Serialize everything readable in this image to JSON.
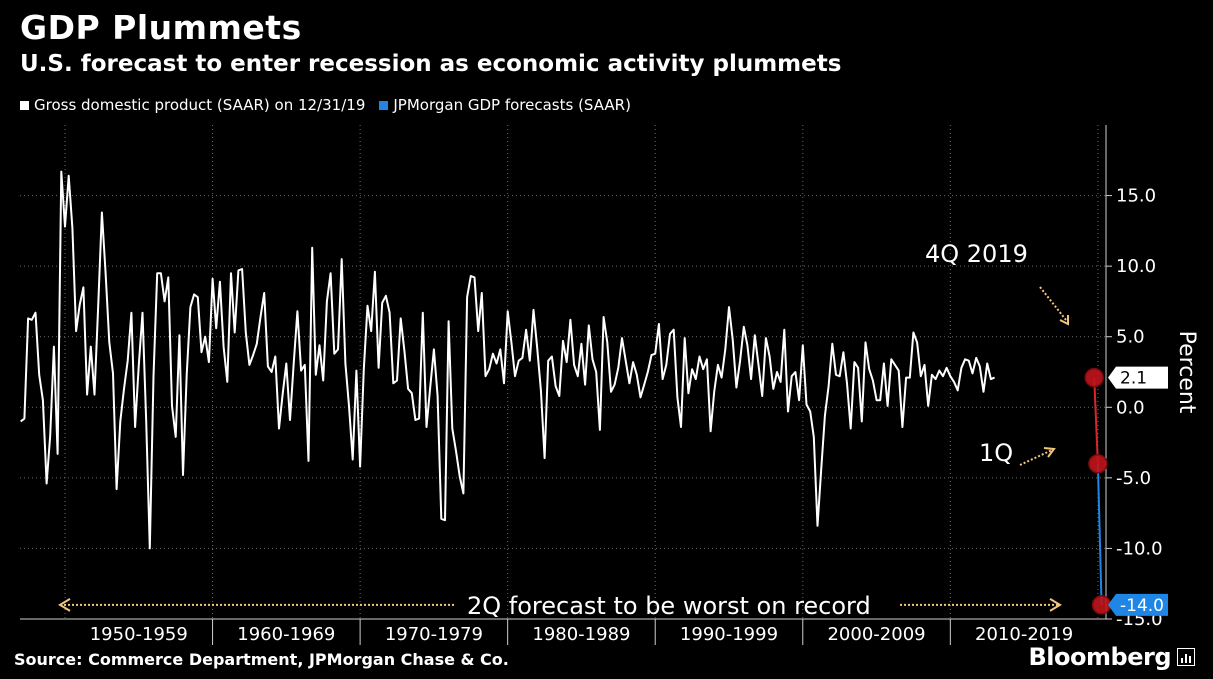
{
  "chart_data": {
    "type": "line",
    "title": "GDP Plummets",
    "subtitle": "U.S. forecast to enter recession as economic activity plummets",
    "ylabel": "Percent",
    "ylim": [
      -15.0,
      20.0
    ],
    "yticks": [
      15.0,
      10.0,
      5.0,
      0.0,
      -5.0,
      -10.0,
      -15.0
    ],
    "ytick_labels": [
      "15.0",
      "10.0",
      "5.0",
      "0.0",
      "-5.0",
      "-10.0",
      "-15.0"
    ],
    "x_categories": [
      "1950-1959",
      "1960-1969",
      "1970-1979",
      "1980-1989",
      "1990-1999",
      "2000-2009",
      "2010-2019"
    ],
    "series": [
      {
        "name": "Gross domestic product (SAAR) on 12/31/19",
        "color": "#ffffff",
        "x_start": 1947.0,
        "x_step": 0.25,
        "values": [
          -1.0,
          -0.8,
          6.3,
          6.2,
          6.7,
          2.3,
          0.5,
          -5.4,
          -2.0,
          4.3,
          -3.3,
          16.7,
          12.8,
          16.4,
          12.7,
          5.4,
          7.3,
          8.5,
          0.9,
          4.3,
          0.9,
          7.2,
          13.8,
          9.5,
          4.6,
          2.4,
          -5.8,
          -1.0,
          1.3,
          3.3,
          6.7,
          -1.4,
          3.0,
          6.7,
          -1.0,
          -10.0,
          2.2,
          9.5,
          9.5,
          7.5,
          9.2,
          0.1,
          -2.1,
          5.1,
          -4.8,
          2.3,
          7.1,
          8.0,
          7.8,
          3.9,
          5.0,
          3.2,
          9.1,
          5.6,
          8.9,
          4.3,
          1.8,
          9.5,
          5.3,
          9.7,
          9.8,
          5.3,
          3.0,
          3.7,
          4.5,
          6.4,
          8.1,
          2.9,
          2.5,
          3.6,
          -1.5,
          0.9,
          3.1,
          -0.9,
          3.1,
          6.8,
          2.6,
          3.0,
          -3.8,
          11.3,
          2.3,
          4.4,
          1.9,
          7.5,
          9.5,
          3.8,
          4.1,
          10.5,
          3.1,
          0.1,
          -3.7,
          2.6,
          -4.2,
          2.7,
          7.2,
          5.4,
          9.6,
          2.8,
          7.4,
          7.9,
          6.7,
          1.7,
          1.9,
          6.3,
          4.0,
          1.3,
          1.0,
          -0.9,
          -0.8,
          6.7,
          -1.4,
          1.4,
          4.1,
          0.8,
          -7.9,
          -8.0,
          6.1,
          -1.5,
          -3.1,
          -4.9,
          -6.1,
          7.8,
          9.3,
          9.2,
          5.4,
          8.1,
          2.2,
          2.7,
          3.8,
          3.1,
          4.1,
          1.7,
          6.8,
          4.6,
          2.2,
          3.3,
          3.5,
          5.5,
          3.3,
          6.9,
          4.2,
          1.2,
          -3.6,
          3.3,
          3.6,
          1.5,
          0.8,
          4.7,
          3.2,
          6.2,
          3.0,
          2.2,
          4.5,
          1.6,
          5.8,
          3.4,
          2.5,
          -1.6,
          6.4,
          4.6,
          1.1,
          1.6,
          2.8,
          4.9,
          3.3,
          1.7,
          3.2,
          2.3,
          0.7,
          1.6,
          2.5,
          3.7,
          3.8,
          5.9,
          2.0,
          3.0,
          5.2,
          5.5,
          0.7,
          -1.4,
          4.9,
          1.0,
          2.7,
          2.0,
          3.6,
          2.7,
          3.4,
          -1.7,
          1.1,
          3.0,
          2.1,
          4.1,
          7.1,
          4.8,
          1.4,
          3.3,
          5.7,
          4.4,
          2.0,
          5.1,
          3.0,
          0.8,
          4.9,
          3.6,
          1.3,
          2.5,
          1.8,
          5.5,
          -0.3,
          2.2,
          2.5,
          0.5,
          4.4,
          0.2,
          -0.3,
          -2.1,
          -8.4,
          -4.4,
          -0.6,
          1.5,
          4.5,
          2.3,
          2.2,
          3.9,
          1.7,
          -1.5,
          3.2,
          2.8,
          -1.0,
          4.6,
          2.7,
          1.9,
          0.5,
          0.5,
          3.1,
          0.1,
          3.4,
          3.0,
          2.6,
          -1.4,
          2.1,
          2.1,
          5.3,
          4.6,
          2.2,
          3.0,
          0.1,
          2.3,
          2.0,
          2.6,
          2.2,
          2.8,
          2.2,
          1.8,
          1.2,
          2.8,
          3.4,
          3.3,
          2.4,
          3.5,
          2.9,
          1.1,
          3.1,
          2.0,
          2.1
        ],
        "labels": [
          {
            "text": "2.1",
            "value": 2.1
          }
        ]
      },
      {
        "name": "JPMorgan GDP forecasts (SAAR)",
        "color": "#1f86e6",
        "x": [
          2019.75,
          2020.0,
          2020.25
        ],
        "values": [
          2.1,
          -4.0,
          -14.0
        ],
        "labels": [
          {
            "text": "-14.0",
            "value": -14.0
          }
        ]
      }
    ],
    "annotations": [
      {
        "text": "4Q 2019",
        "x": 2019.75,
        "y": 2.1
      },
      {
        "text": "1Q",
        "x": 2020.0,
        "y": -4.0
      },
      {
        "text": "2Q forecast to be worst on record",
        "x": 2020.25,
        "y": -14.0
      }
    ]
  },
  "legend": {
    "gdp_label": "Gross domestic product (SAAR) on 12/31/19",
    "forecast_label": "JPMorgan GDP forecasts (SAAR)"
  },
  "source": "Source: Commerce Department, JPMorgan Chase & Co.",
  "brand": "Bloomberg",
  "colors": {
    "background": "#000000",
    "line": "#ffffff",
    "forecast": "#1f86e6",
    "forecast_link": "#d9262e",
    "marker": "#c0141b",
    "annotation_arrow": "#f2c57c"
  }
}
